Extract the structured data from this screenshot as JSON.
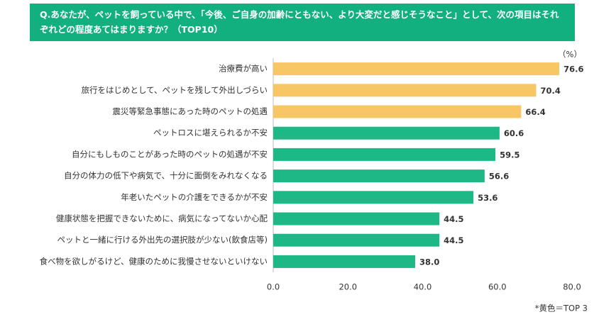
{
  "chart_data": {
    "type": "bar",
    "orientation": "horizontal",
    "title": "Q.あなたが、ペットを飼っている中で、「今後、ご自身の加齢にともない、より大変だと感じそうなこと」として、次の項目はそれぞれどの程度あてはまりますか？（TOP10）",
    "unit": "（%）",
    "note": "*黄色＝TOP 3",
    "categories": [
      "治療費が高い",
      "旅行をはじめとして、ペットを残して外出しづらい",
      "震災等緊急事態にあった時のペットの処遇",
      "ペットロスに堪えられるか不安",
      "自分にもしものことがあった時のペットの処遇が不安",
      "自分の体力の低下や病気で、十分に面倒をみれなくなる",
      "年老いたペットの介護をできるかが不安",
      "健康状態を把握できないために、病気になってないか心配",
      "ペットと一緒に行ける外出先の選択肢が少ない(飲食店等)",
      "食べ物を欲しがるけど、健康のために我慢させないといけない"
    ],
    "values": [
      76.6,
      70.4,
      66.4,
      60.6,
      59.5,
      56.6,
      53.6,
      44.5,
      44.5,
      38
    ],
    "value_labels": [
      "76.6",
      "70.4",
      "66.4",
      "60.6",
      "59.5",
      "56.6",
      "53.6",
      "44.5",
      "44.5",
      "38.0"
    ],
    "colors": [
      "#f7c766",
      "#f7c766",
      "#f7c766",
      "#1db885",
      "#1db885",
      "#1db885",
      "#1db885",
      "#1db885",
      "#1db885",
      "#1db885"
    ],
    "xlim": [
      0,
      80
    ],
    "xticks": [
      {
        "value": 0,
        "label": "0.0"
      },
      {
        "value": 20,
        "label": "20.0"
      },
      {
        "value": 40,
        "label": "40.0"
      },
      {
        "value": 60,
        "label": "60.0"
      },
      {
        "value": 80,
        "label": "80.0"
      }
    ]
  }
}
